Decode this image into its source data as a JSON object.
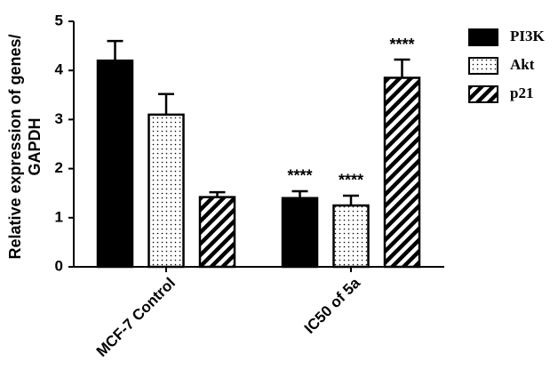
{
  "chart_data": {
    "type": "bar",
    "ylabel": [
      "Relative expression of genes/",
      "GAPDH"
    ],
    "categories": [
      "MCF-7 Control",
      "IC50 of 5a"
    ],
    "series": [
      {
        "name": "PI3K",
        "color": "#000000",
        "pattern": "solid",
        "values": [
          4.2,
          1.4
        ],
        "errors": [
          0.4,
          0.14
        ],
        "annotations": [
          null,
          "****"
        ]
      },
      {
        "name": "Akt",
        "color": "#000000",
        "pattern": "dots",
        "values": [
          3.1,
          1.25
        ],
        "errors": [
          0.42,
          0.2
        ],
        "annotations": [
          null,
          "****"
        ]
      },
      {
        "name": "p21",
        "color": "#000000",
        "pattern": "hatch",
        "values": [
          1.42,
          3.85
        ],
        "errors": [
          0.1,
          0.37
        ],
        "annotations": [
          null,
          "****"
        ]
      }
    ],
    "ylim": [
      0,
      5
    ],
    "yticks": [
      0,
      1,
      2,
      3,
      4,
      5
    ],
    "grid": false,
    "legend": "right"
  }
}
